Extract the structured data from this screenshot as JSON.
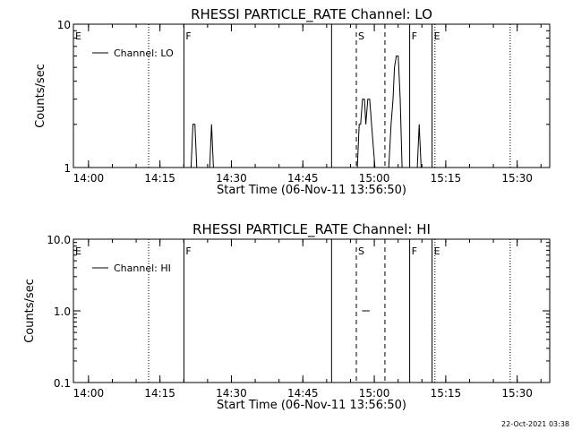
{
  "footer": {
    "timestamp": "22-Oct-2021 03:38"
  },
  "chart_data": [
    {
      "type": "line",
      "title": "RHESSI PARTICLE_RATE Channel: LO",
      "xlabel": "Start Time (06-Nov-11 13:56:50)",
      "ylabel": "Counts/sec",
      "x_unit": "minutes after 13:56:50",
      "xlim": [
        0,
        100
      ],
      "ylim": [
        1,
        10
      ],
      "yscale": "log",
      "xticks": [
        {
          "label": "14:00",
          "x": 3.17
        },
        {
          "label": "14:15",
          "x": 18.17
        },
        {
          "label": "14:30",
          "x": 33.17
        },
        {
          "label": "14:45",
          "x": 48.17
        },
        {
          "label": "15:00",
          "x": 63.17
        },
        {
          "label": "15:15",
          "x": 78.17
        },
        {
          "label": "15:30",
          "x": 93.17
        }
      ],
      "yticks": [
        {
          "label": "1",
          "y": 1
        },
        {
          "label": "10",
          "y": 10
        }
      ],
      "legend": {
        "position": "top-left",
        "entries": [
          {
            "name": "Channel: LO",
            "color": "#000000"
          }
        ]
      },
      "markers": [
        {
          "label": "E",
          "x": 0,
          "style": "solid"
        },
        {
          "label": "",
          "x": 15.8,
          "style": "dotted"
        },
        {
          "label": "F",
          "x": 23.2,
          "style": "solid"
        },
        {
          "label": "",
          "x": 54.2,
          "style": "solid"
        },
        {
          "label": "S",
          "x": 59.4,
          "style": "dashed"
        },
        {
          "label": "",
          "x": 65.4,
          "style": "dashed"
        },
        {
          "label": "F",
          "x": 70.6,
          "style": "solid"
        },
        {
          "label": "E",
          "x": 75.3,
          "style": "solid"
        },
        {
          "label": "",
          "x": 75.9,
          "style": "dotted"
        },
        {
          "label": "",
          "x": 91.7,
          "style": "dotted"
        }
      ],
      "series": [
        {
          "name": "Channel: LO",
          "segments": [
            [
              [
                24.7,
                1.0
              ],
              [
                25.1,
                2.0
              ],
              [
                25.5,
                2.0
              ],
              [
                25.9,
                1.0
              ]
            ],
            [
              [
                28.6,
                1.0
              ],
              [
                29.0,
                2.0
              ],
              [
                29.4,
                1.0
              ]
            ],
            [
              [
                59.6,
                1.0
              ],
              [
                60.0,
                2.0
              ],
              [
                60.3,
                2.0
              ],
              [
                60.7,
                3.0
              ],
              [
                61.1,
                3.0
              ],
              [
                61.4,
                2.0
              ],
              [
                61.8,
                3.0
              ],
              [
                62.2,
                3.0
              ],
              [
                62.6,
                2.0
              ],
              [
                63.3,
                1.0
              ]
            ],
            [
              [
                66.2,
                1.0
              ],
              [
                66.7,
                2.0
              ],
              [
                67.1,
                3.0
              ],
              [
                67.4,
                5.0
              ],
              [
                67.8,
                6.0
              ],
              [
                68.2,
                6.0
              ],
              [
                68.6,
                3.0
              ],
              [
                69.0,
                1.0
              ]
            ],
            [
              [
                72.2,
                1.0
              ],
              [
                72.6,
                2.0
              ],
              [
                73.0,
                1.0
              ]
            ]
          ]
        }
      ]
    },
    {
      "type": "line",
      "title": "RHESSI PARTICLE_RATE Channel: HI",
      "xlabel": "Start Time (06-Nov-11 13:56:50)",
      "ylabel": "Counts/sec",
      "x_unit": "minutes after 13:56:50",
      "xlim": [
        0,
        100
      ],
      "ylim": [
        0.1,
        10
      ],
      "yscale": "log",
      "xticks": [
        {
          "label": "14:00",
          "x": 3.17
        },
        {
          "label": "14:15",
          "x": 18.17
        },
        {
          "label": "14:30",
          "x": 33.17
        },
        {
          "label": "14:45",
          "x": 48.17
        },
        {
          "label": "15:00",
          "x": 63.17
        },
        {
          "label": "15:15",
          "x": 78.17
        },
        {
          "label": "15:30",
          "x": 93.17
        }
      ],
      "yticks": [
        {
          "label": "0.1",
          "y": 0.1
        },
        {
          "label": "1.0",
          "y": 1.0
        },
        {
          "label": "10.0",
          "y": 10.0
        }
      ],
      "legend": {
        "position": "top-left",
        "entries": [
          {
            "name": "Channel: HI",
            "color": "#000000"
          }
        ]
      },
      "markers": [
        {
          "label": "E",
          "x": 0,
          "style": "solid"
        },
        {
          "label": "",
          "x": 15.8,
          "style": "dotted"
        },
        {
          "label": "F",
          "x": 23.2,
          "style": "solid"
        },
        {
          "label": "",
          "x": 54.2,
          "style": "solid"
        },
        {
          "label": "S",
          "x": 59.4,
          "style": "dashed"
        },
        {
          "label": "",
          "x": 65.4,
          "style": "dashed"
        },
        {
          "label": "F",
          "x": 70.6,
          "style": "solid"
        },
        {
          "label": "E",
          "x": 75.3,
          "style": "solid"
        },
        {
          "label": "",
          "x": 75.9,
          "style": "dotted"
        },
        {
          "label": "",
          "x": 91.7,
          "style": "dotted"
        }
      ],
      "series": [
        {
          "name": "Channel: HI",
          "segments": [
            [
              [
                60.6,
                1.0
              ],
              [
                62.2,
                1.0
              ]
            ]
          ]
        }
      ]
    }
  ]
}
